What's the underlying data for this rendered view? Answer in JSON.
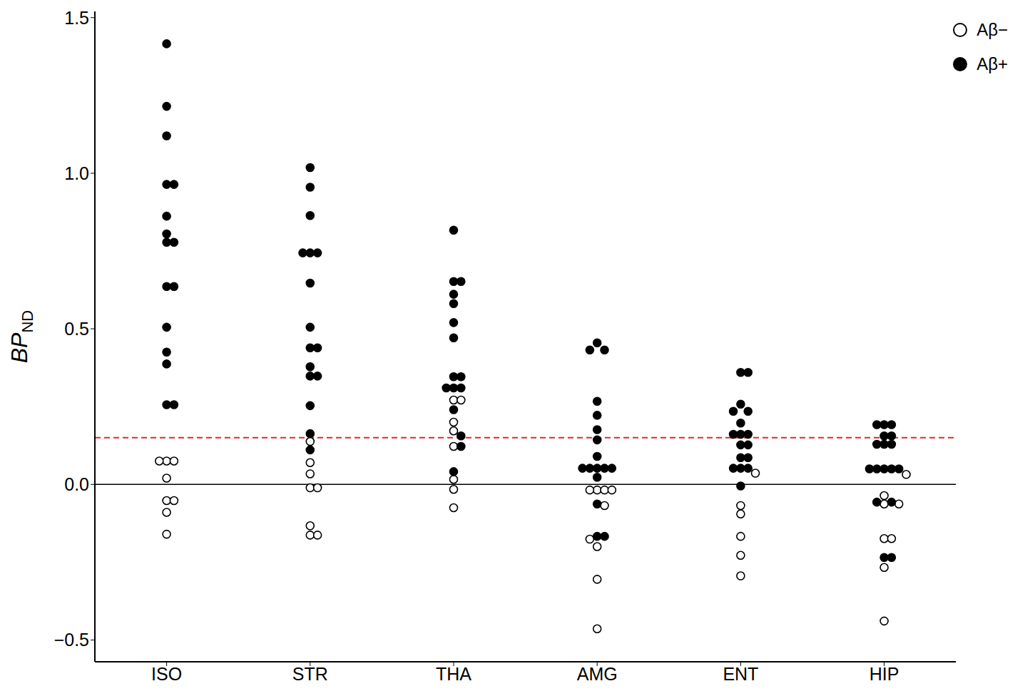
{
  "chart_data": {
    "type": "scatter",
    "y_label": {
      "main": "BP",
      "sub": "ND"
    },
    "categories": [
      "ISO",
      "STR",
      "THA",
      "AMG",
      "ENT",
      "HIP"
    ],
    "ylim": [
      -0.57,
      1.52
    ],
    "yticks": [
      {
        "value": -0.5,
        "label": "−0.5"
      },
      {
        "value": 0,
        "label": "0.0"
      },
      0.5,
      {
        "value": 1,
        "label": "1.0"
      },
      1.5
    ],
    "legend": "upper right",
    "reference_lines": [
      {
        "y": 0.15,
        "color": "#e3262a",
        "line_style": "dashed"
      },
      {
        "y": 0,
        "color": "#000000",
        "line_style": "solid"
      }
    ],
    "series": [
      {
        "name": "Aβ−",
        "color": "#000000",
        "marker": "open",
        "values": [
          [
            0.075,
            0.075,
            0.075,
            0.02,
            -0.052,
            -0.052,
            -0.09,
            -0.16
          ],
          [
            0.138,
            0.07,
            0.034,
            -0.011,
            -0.011,
            -0.133,
            -0.163,
            -0.163
          ],
          [
            0.271,
            0.271,
            0.2,
            0.172,
            0.122,
            0.016,
            -0.016,
            -0.075
          ],
          [
            -0.018,
            -0.018,
            -0.018,
            -0.018,
            -0.068,
            -0.176,
            -0.2,
            -0.305,
            -0.464
          ],
          [
            0.036,
            -0.068,
            -0.095,
            -0.167,
            -0.228,
            -0.294
          ],
          [
            0.032,
            -0.036,
            -0.063,
            -0.063,
            -0.174,
            -0.174,
            -0.267,
            -0.439
          ]
        ]
      },
      {
        "name": "Aβ+",
        "color": "#000000",
        "marker": "filled",
        "values": [
          [
            1.416,
            1.215,
            1.12,
            0.964,
            0.964,
            0.862,
            0.805,
            0.778,
            0.778,
            0.636,
            0.636,
            0.505,
            0.425,
            0.387,
            0.256,
            0.256
          ],
          [
            1.018,
            0.955,
            0.864,
            0.744,
            0.744,
            0.744,
            0.647,
            0.505,
            0.439,
            0.439,
            0.378,
            0.348,
            0.348,
            0.253,
            0.163,
            0.111
          ],
          [
            0.817,
            0.652,
            0.652,
            0.611,
            0.581,
            0.52,
            0.471,
            0.346,
            0.346,
            0.31,
            0.31,
            0.31,
            0.24,
            0.156,
            0.122,
            0.041
          ],
          [
            0.455,
            0.432,
            0.432,
            0.267,
            0.222,
            0.176,
            0.143,
            0.09,
            0.052,
            0.052,
            0.052,
            0.052,
            0.052,
            0.023,
            -0.063,
            -0.167,
            -0.167
          ],
          [
            0.36,
            0.36,
            0.258,
            0.235,
            0.235,
            0.197,
            0.161,
            0.161,
            0.161,
            0.127,
            0.127,
            0.086,
            0.086,
            0.052,
            0.052,
            0.052,
            -0.005
          ],
          [
            0.192,
            0.192,
            0.192,
            0.156,
            0.156,
            0.129,
            0.129,
            0.129,
            0.05,
            0.05,
            0.05,
            0.05,
            0.05,
            -0.057,
            -0.057,
            -0.235,
            -0.235
          ]
        ]
      }
    ]
  }
}
